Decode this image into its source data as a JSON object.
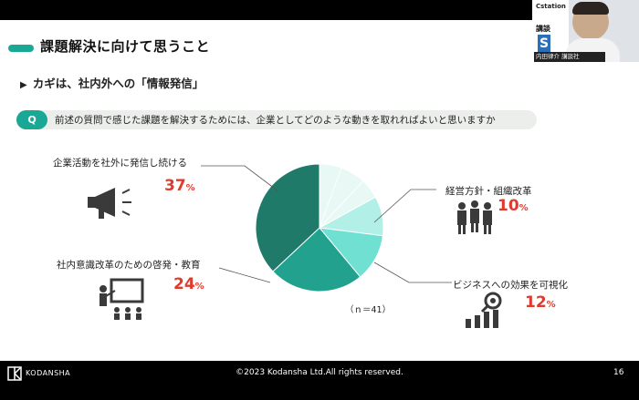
{
  "slide": {
    "title": "課題解決に向けて思うこと",
    "subtitle": "カギは、社内外への「情報発信」",
    "question_badge": "Q",
    "question": "前述の質問で感じた課題を解決するためには、企業としてどのような動きを取れればよいと思いますか",
    "n_label": "（ｎ＝41）"
  },
  "chart_data": {
    "type": "pie",
    "title": "",
    "slices": [
      {
        "label": "企業活動を社外に発信し続ける",
        "value": 37,
        "color": "#1f7a6a"
      },
      {
        "label": "社内意識改革のための啓発・教育",
        "value": 24,
        "color": "#22a28e"
      },
      {
        "label": "ビジネスへの効果を可視化",
        "value": 12,
        "color": "#6fe0d2"
      },
      {
        "label": "経営方針・組織改革",
        "value": 10,
        "color": "#b2efe7"
      },
      {
        "label": "",
        "value": 17,
        "color": "#e7f8f5"
      }
    ],
    "percent_suffix": "%"
  },
  "callouts": {
    "c1": {
      "label": "企業活動を社外に発信し続ける",
      "value": "37",
      "icon": "megaphone-icon"
    },
    "c2": {
      "label": "社内意識改革のための啓発・教育",
      "value": "24",
      "icon": "presentation-icon"
    },
    "c3": {
      "label": "経営方針・組織改革",
      "value": "10",
      "icon": "people-icon"
    },
    "c4": {
      "label": "ビジネスへの効果を可視化",
      "value": "12",
      "icon": "chart-magnifier-icon"
    },
    "unit": "%"
  },
  "webcam": {
    "logo": "Cstation",
    "caption_top": "講談",
    "caption_bottom": "内田律介 講談社"
  },
  "footer": {
    "brand": "KODANSHA",
    "copyright": "©2023 Kodansha Ltd.All rights reserved.",
    "page": "16"
  }
}
